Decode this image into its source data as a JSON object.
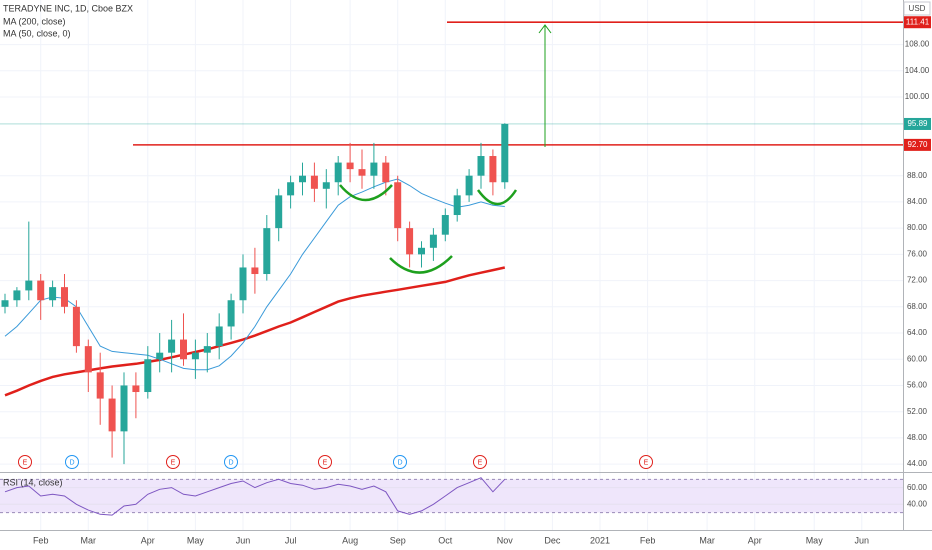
{
  "chart_data": [
    {
      "type": "candlestick",
      "title": "TERADYNE INC, 1D, Cboe BZX",
      "currency": "USD",
      "categories": [
        null,
        null,
        null,
        "Feb",
        null,
        null,
        null,
        "Mar",
        null,
        null,
        null,
        null,
        "Apr",
        null,
        null,
        null,
        "May",
        null,
        null,
        null,
        "Jun",
        null,
        null,
        null,
        "Jul",
        null,
        null,
        null,
        null,
        "Aug",
        null,
        null,
        null,
        "Sep",
        null,
        null,
        null,
        "Oct",
        null,
        null,
        null,
        null,
        "Nov",
        null,
        null,
        null,
        "Dec",
        null,
        null,
        null,
        "2021",
        null,
        null,
        null,
        "Feb",
        null,
        null,
        null,
        null,
        "Mar",
        null,
        null,
        null,
        "Apr",
        null,
        null,
        null,
        null,
        "May",
        null,
        null,
        null,
        "Jun",
        null,
        null,
        null
      ],
      "open": [
        68,
        69,
        70.5,
        72,
        69,
        71,
        68,
        62,
        58,
        54,
        49,
        56,
        55,
        60,
        61,
        63,
        60,
        61,
        62,
        65,
        69,
        74,
        73,
        80,
        85,
        87,
        88,
        86,
        87,
        90,
        89,
        88,
        90,
        87,
        80,
        76,
        77,
        79,
        82,
        85,
        88,
        91,
        87,
        null,
        null,
        null,
        null,
        null,
        null,
        null,
        null,
        null,
        null,
        null,
        null,
        null,
        null,
        null,
        null,
        null,
        null,
        null,
        null,
        null,
        null,
        null,
        null,
        null,
        null,
        null,
        null,
        null,
        null,
        null,
        null,
        null
      ],
      "high": [
        70,
        71,
        81,
        73,
        72,
        73,
        69,
        63,
        61,
        56,
        58,
        58,
        62,
        64,
        66,
        67,
        63,
        64,
        67,
        70,
        76,
        77,
        82,
        86,
        88,
        90,
        90,
        89,
        91,
        93,
        92,
        93,
        91,
        88,
        81,
        78,
        80,
        83,
        86,
        89,
        93,
        92,
        96,
        null,
        null,
        null,
        null,
        null,
        null,
        null,
        null,
        null,
        null,
        null,
        null,
        null,
        null,
        null,
        null,
        null,
        null,
        null,
        null,
        null,
        null,
        null,
        null,
        null,
        null,
        null,
        null,
        null,
        null,
        null,
        null,
        null
      ],
      "low": [
        67,
        68,
        69,
        66,
        68,
        67,
        61,
        55,
        50,
        45,
        44,
        51,
        54,
        58,
        58,
        59,
        57,
        58,
        60,
        63,
        67,
        70,
        72,
        78,
        83,
        85,
        84,
        83,
        85,
        87,
        86,
        86,
        85,
        78,
        74,
        74,
        75,
        78,
        81,
        84,
        86,
        85,
        86,
        null,
        null,
        null,
        null,
        null,
        null,
        null,
        null,
        null,
        null,
        null,
        null,
        null,
        null,
        null,
        null,
        null,
        null,
        null,
        null,
        null,
        null,
        null,
        null,
        null,
        null,
        null,
        null,
        null,
        null,
        null,
        null,
        null
      ],
      "close": [
        69,
        70.5,
        72,
        69,
        71,
        68,
        62,
        58,
        54,
        49,
        56,
        55,
        60,
        61,
        63,
        60,
        61,
        62,
        65,
        69,
        74,
        73,
        80,
        85,
        87,
        88,
        86,
        87,
        90,
        89,
        88,
        90,
        87,
        80,
        76,
        77,
        79,
        82,
        85,
        88,
        91,
        87,
        95.89,
        null,
        null,
        null,
        null,
        null,
        null,
        null,
        null,
        null,
        null,
        null,
        null,
        null,
        null,
        null,
        null,
        null,
        null,
        null,
        null,
        null,
        null,
        null,
        null,
        null,
        null,
        null,
        null,
        null,
        null,
        null,
        null,
        null
      ],
      "close_label": "95.89",
      "up_color": "#26a69a",
      "down_color": "#ef5350",
      "series": [
        {
          "name": "MA (200, close)",
          "color": "#e0201b",
          "values": [
            54.5,
            55.2,
            56,
            56.7,
            57.3,
            57.7,
            58,
            58.3,
            58.6,
            58.9,
            59.1,
            59.3,
            59.6,
            59.9,
            60.3,
            60.7,
            61.1,
            61.5,
            62,
            62.5,
            63,
            63.6,
            64.3,
            65,
            65.6,
            66.4,
            67.2,
            68,
            68.8,
            69.3,
            69.7,
            70,
            70.3,
            70.6,
            70.9,
            71.2,
            71.5,
            71.8,
            72.3,
            72.8,
            73.2,
            73.6,
            74,
            null,
            null,
            null,
            null,
            null,
            null,
            null,
            null,
            null,
            null,
            null,
            null,
            null,
            null,
            null,
            null,
            null,
            null,
            null,
            null,
            null,
            null,
            null,
            null,
            null,
            null,
            null,
            null,
            null,
            null,
            null,
            null,
            null
          ]
        },
        {
          "name": "MA (50, close, 0)",
          "color": "#3a9ad9",
          "values": [
            63.5,
            65,
            67,
            69,
            69.5,
            69.3,
            68,
            65,
            62,
            61.2,
            61,
            60.8,
            60.6,
            60,
            59.3,
            58.6,
            58.4,
            58.4,
            59,
            60.5,
            62.5,
            65,
            68,
            70.5,
            73,
            76,
            78.5,
            81,
            83.5,
            84.8,
            85.5,
            86.3,
            87,
            87.5,
            86.5,
            85.3,
            84.5,
            83.8,
            83.2,
            83.5,
            84,
            83.5,
            83.3,
            null,
            null,
            null,
            null,
            null,
            null,
            null,
            null,
            null,
            null,
            null,
            null,
            null,
            null,
            null,
            null,
            null,
            null,
            null,
            null,
            null,
            null,
            null,
            null,
            null,
            null,
            null,
            null,
            null,
            null,
            null,
            null,
            null
          ]
        }
      ],
      "ylim": [
        42.8,
        114.8
      ],
      "yticks": [
        {
          "value": 44,
          "label": "44.00"
        },
        {
          "value": 48,
          "label": "48.00"
        },
        {
          "value": 52,
          "label": "52.00"
        },
        {
          "value": 56,
          "label": "56.00"
        },
        {
          "value": 60,
          "label": "60.00"
        },
        {
          "value": 64,
          "label": "64.00"
        },
        {
          "value": 68,
          "label": "68.00"
        },
        {
          "value": 72,
          "label": "72.00"
        },
        {
          "value": 76,
          "label": "76.00"
        },
        {
          "value": 80,
          "label": "80.00"
        },
        {
          "value": 84,
          "label": "84.00"
        },
        {
          "value": 88,
          "label": "88.00"
        },
        {
          "value": 100,
          "label": "100.00"
        },
        {
          "value": 104,
          "label": "104.00"
        },
        {
          "value": 108,
          "label": "108.00"
        }
      ],
      "levels": [
        {
          "value": 92.7,
          "label": "92.70",
          "color": "#e0201b"
        },
        {
          "value": 111.41,
          "label": "111.41",
          "color": "#e0201b"
        }
      ],
      "events": [
        {
          "label": "E",
          "color": "#e0201b"
        },
        {
          "label": "D",
          "color": "#2196f3"
        },
        {
          "label": "E",
          "color": "#e0201b"
        },
        {
          "label": "D",
          "color": "#2196f3"
        },
        {
          "label": "E",
          "color": "#e0201b"
        },
        {
          "label": "D",
          "color": "#2196f3"
        },
        {
          "label": "E",
          "color": "#e0201b"
        },
        {
          "label": "E",
          "color": "#e0201b"
        }
      ],
      "grid": true
    },
    {
      "type": "line",
      "title": "RSI (14, close)",
      "series": [
        {
          "name": "RSI (14, close)",
          "color": "#7e57c2",
          "values": [
            55,
            60,
            62,
            50,
            52,
            50,
            40,
            33,
            28,
            27,
            38,
            40,
            52,
            58,
            60,
            52,
            50,
            55,
            60,
            65,
            68,
            60,
            66,
            70,
            65,
            63,
            58,
            60,
            64,
            62,
            58,
            62,
            55,
            32,
            28,
            32,
            40,
            50,
            60,
            66,
            72,
            55,
            70,
            null,
            null,
            null,
            null,
            null,
            null,
            null,
            null,
            null,
            null,
            null,
            null,
            null,
            null,
            null,
            null,
            null,
            null,
            null,
            null,
            null,
            null,
            null,
            null,
            null,
            null,
            null,
            null,
            null,
            null,
            null,
            null,
            null
          ]
        }
      ],
      "band": [
        30,
        70
      ],
      "ylim": [
        9.1,
        76.4
      ],
      "yticks": [
        {
          "value": 40,
          "label": "40.00"
        },
        {
          "value": 60,
          "label": "60.00"
        }
      ]
    }
  ]
}
